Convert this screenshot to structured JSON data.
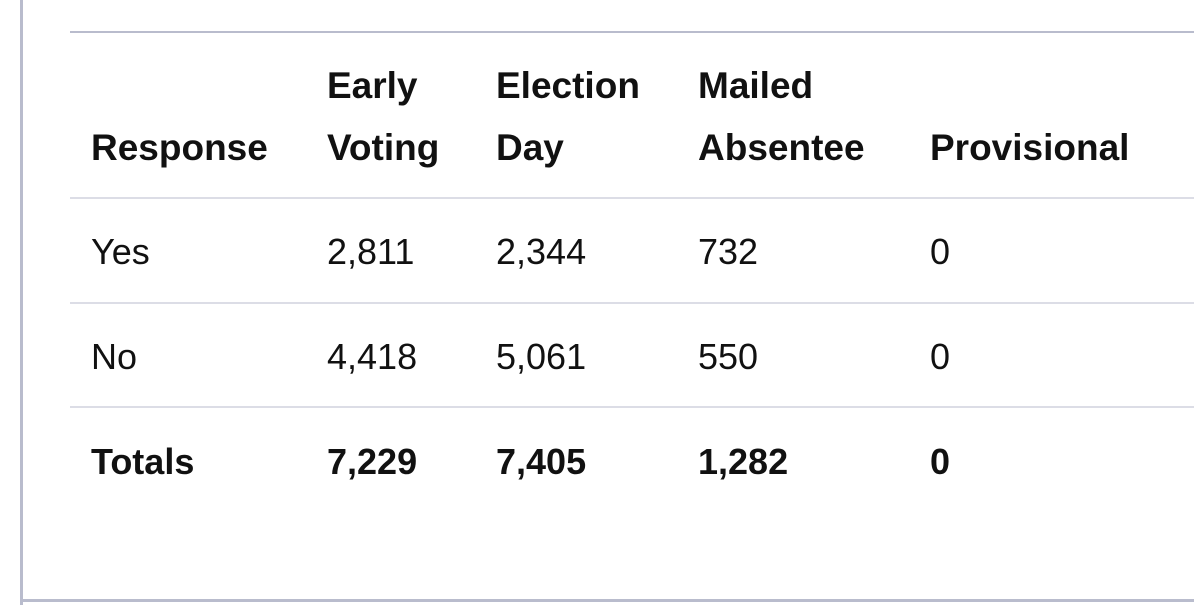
{
  "table": {
    "columns": [
      "Response",
      "Early Voting",
      "Election Day",
      "Mailed Absentee",
      "Provisional"
    ],
    "rows": [
      [
        "Yes",
        "2,811",
        "2,344",
        "732",
        "0"
      ],
      [
        "No",
        "4,418",
        "5,061",
        "550",
        "0"
      ]
    ],
    "totals": [
      "Totals",
      "7,229",
      "7,405",
      "1,282",
      "0"
    ]
  }
}
